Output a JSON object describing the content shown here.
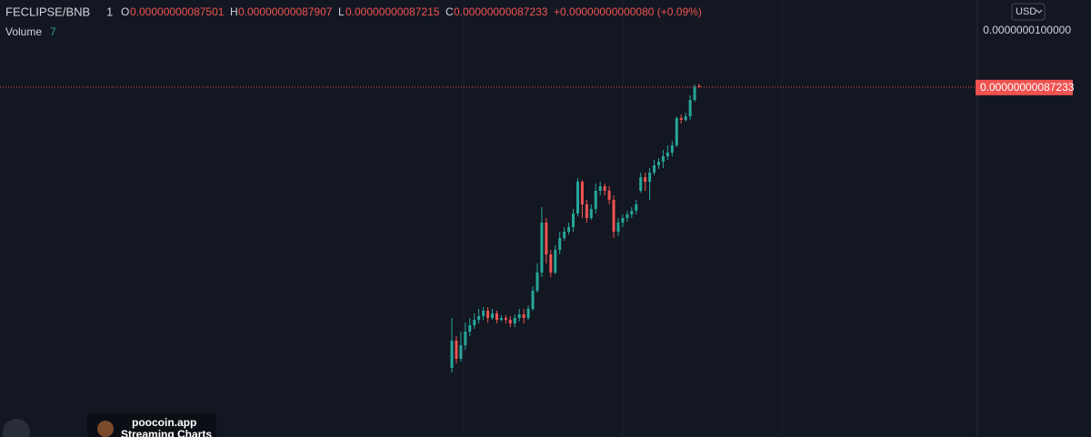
{
  "header": {
    "symbol": "FECLIPSE/BNB",
    "interval": "1",
    "open_label": "O",
    "open": "0.00000000087501",
    "high_label": "H",
    "high": "0.00000000087907",
    "low_label": "L",
    "low": "0.00000000087215",
    "close_label": "C",
    "close": "0.00000000087233",
    "change": "+0.00000000000080 (+0.09%)"
  },
  "volume": {
    "label": "Volume",
    "value": "7"
  },
  "price_axis": {
    "currency": "USD",
    "top_label": "0.0000000100000",
    "last_price": "0.00000000087233"
  },
  "watermark": {
    "site": "poocoin.app",
    "tagline": "Streaming Charts"
  },
  "chart_data": {
    "type": "candlestick",
    "ylim": [
      1.02e-10,
      1.064e-09
    ],
    "colors": {
      "up": "#26a69a",
      "down": "#ef5350"
    },
    "ohlc": [
      [
        2.54e-10,
        3.64e-10,
        2.44e-10,
        3.14e-10
      ],
      [
        3.14e-10,
        3.24e-10,
        2.64e-10,
        2.74e-10
      ],
      [
        2.74e-10,
        3.34e-10,
        2.68e-10,
        3.04e-10
      ],
      [
        3.04e-10,
        3.54e-10,
        2.94e-10,
        3.34e-10
      ],
      [
        3.34e-10,
        3.64e-10,
        3.24e-10,
        3.48e-10
      ],
      [
        3.48e-10,
        3.74e-10,
        3.4e-10,
        3.6e-10
      ],
      [
        3.6e-10,
        3.84e-10,
        3.52e-10,
        3.68e-10
      ],
      [
        3.68e-10,
        3.88e-10,
        3.6e-10,
        3.8e-10
      ],
      [
        3.8e-10,
        3.88e-10,
        3.54e-10,
        3.64e-10
      ],
      [
        3.64e-10,
        3.84e-10,
        3.6e-10,
        3.74e-10
      ],
      [
        3.74e-10,
        3.8e-10,
        3.52e-10,
        3.6e-10
      ],
      [
        3.6e-10,
        3.7e-10,
        3.56e-10,
        3.64e-10
      ],
      [
        3.64e-10,
        3.7e-10,
        3.52e-10,
        3.6e-10
      ],
      [
        3.6e-10,
        3.68e-10,
        3.44e-10,
        3.52e-10
      ],
      [
        3.52e-10,
        3.72e-10,
        3.44e-10,
        3.64e-10
      ],
      [
        3.64e-10,
        3.84e-10,
        3.56e-10,
        3.72e-10
      ],
      [
        3.72e-10,
        3.84e-10,
        3.52e-10,
        3.64e-10
      ],
      [
        3.64e-10,
        3.92e-10,
        3.6e-10,
        3.84e-10
      ],
      [
        3.84e-10,
        4.34e-10,
        3.8e-10,
        4.24e-10
      ],
      [
        4.24e-10,
        4.84e-10,
        4.2e-10,
        4.64e-10
      ],
      [
        4.64e-10,
        6.08e-10,
        4.54e-10,
        5.74e-10
      ],
      [
        5.74e-10,
        5.84e-10,
        4.84e-10,
        5.04e-10
      ],
      [
        5.04e-10,
        5.14e-10,
        4.54e-10,
        4.64e-10
      ],
      [
        4.64e-10,
        5.24e-10,
        4.6e-10,
        5.14e-10
      ],
      [
        5.14e-10,
        5.54e-10,
        5.04e-10,
        5.4e-10
      ],
      [
        5.4e-10,
        5.64e-10,
        5.34e-10,
        5.54e-10
      ],
      [
        5.54e-10,
        5.74e-10,
        5.48e-10,
        5.64e-10
      ],
      [
        5.64e-10,
        6.04e-10,
        5.54e-10,
        5.94e-10
      ],
      [
        5.94e-10,
        6.72e-10,
        5.88e-10,
        6.64e-10
      ],
      [
        6.64e-10,
        6.68e-10,
        5.84e-10,
        6.14e-10
      ],
      [
        6.14e-10,
        6.24e-10,
        5.74e-10,
        5.84e-10
      ],
      [
        5.84e-10,
        6.14e-10,
        5.8e-10,
        6.04e-10
      ],
      [
        6.04e-10,
        6.6e-10,
        5.94e-10,
        6.44e-10
      ],
      [
        6.44e-10,
        6.64e-10,
        6.34e-10,
        6.54e-10
      ],
      [
        6.54e-10,
        6.6e-10,
        6.34e-10,
        6.44e-10
      ],
      [
        6.44e-10,
        6.54e-10,
        6.14e-10,
        6.24e-10
      ],
      [
        6.24e-10,
        6.34e-10,
        5.4e-10,
        5.54e-10
      ],
      [
        5.54e-10,
        5.84e-10,
        5.44e-10,
        5.74e-10
      ],
      [
        5.74e-10,
        5.92e-10,
        5.64e-10,
        5.84e-10
      ],
      [
        5.84e-10,
        6e-10,
        5.76e-10,
        5.92e-10
      ],
      [
        5.92e-10,
        6.08e-10,
        5.84e-10,
        6e-10
      ],
      [
        6e-10,
        6.24e-10,
        5.92e-10,
        6.14e-10
      ],
      [
        6.44e-10,
        6.84e-10,
        6.4e-10,
        6.74e-10
      ],
      [
        6.74e-10,
        6.84e-10,
        6.44e-10,
        6.64e-10
      ],
      [
        6.64e-10,
        6.94e-10,
        6.24e-10,
        6.84e-10
      ],
      [
        6.84e-10,
        7.12e-10,
        6.78e-10,
        7e-10
      ],
      [
        7e-10,
        7.16e-10,
        6.92e-10,
        7.08e-10
      ],
      [
        7.08e-10,
        7.34e-10,
        6.94e-10,
        7.2e-10
      ],
      [
        7.2e-10,
        7.44e-10,
        7.12e-10,
        7.28e-10
      ],
      [
        7.28e-10,
        7.54e-10,
        7.2e-10,
        7.44e-10
      ],
      [
        7.44e-10,
        8.08e-10,
        7.4e-10,
        8.04e-10
      ],
      [
        8.04e-10,
        8.12e-10,
        7.92e-10,
        8e-10
      ],
      [
        8e-10,
        8.16e-10,
        7.96e-10,
        8.08e-10
      ],
      [
        8.08e-10,
        8.54e-10,
        8e-10,
        8.44e-10
      ],
      [
        8.44e-10,
        8.78e-10,
        8.4e-10,
        8.72e-10
      ],
      [
        8.7501e-10,
        8.7907e-10,
        8.7215e-10,
        8.7233e-10
      ]
    ]
  }
}
